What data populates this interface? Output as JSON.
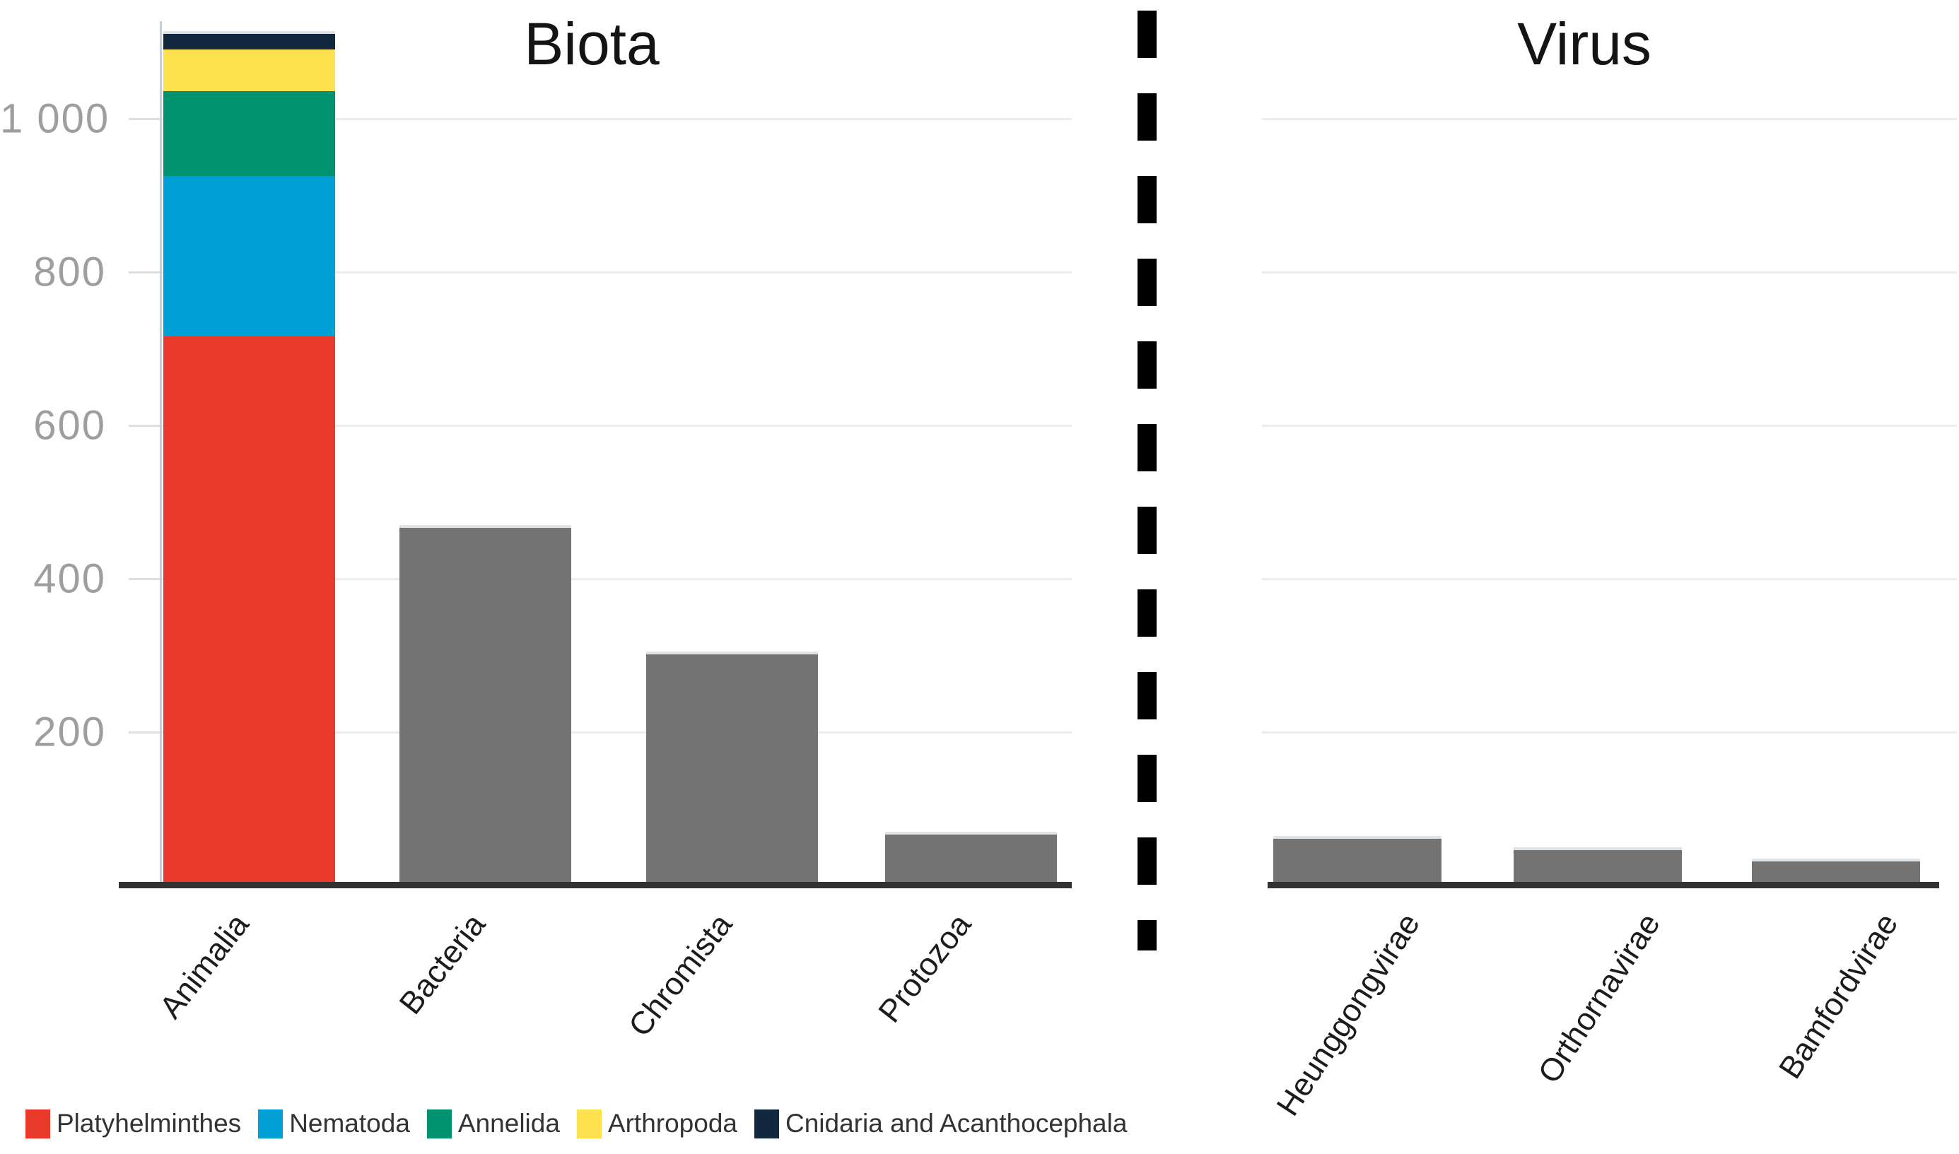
{
  "page": {
    "background": "#ffffff"
  },
  "y_axis": {
    "ticks": [
      {
        "label": "200",
        "value": 200
      },
      {
        "label": "400",
        "value": 400
      },
      {
        "label": "600",
        "value": 600
      },
      {
        "label": "800",
        "value": 800
      },
      {
        "label": "1 000",
        "value": 1000
      }
    ]
  },
  "chart_data": [
    {
      "type": "bar",
      "stacked": true,
      "title": "Biota",
      "ylabel": "",
      "xlabel": "",
      "ylim": [
        0,
        1150
      ],
      "grid": true,
      "categories": [
        "Animalia",
        "Bacteria",
        "Chromista",
        "Protozoa"
      ],
      "bars": [
        {
          "category": "Animalia",
          "segments": [
            {
              "name": "Platyhelminthes",
              "value": 715,
              "color": "#e8392b"
            },
            {
              "name": "Nematoda",
              "value": 210,
              "color": "#00a0d6"
            },
            {
              "name": "Annelida",
              "value": 110,
              "color": "#00916f"
            },
            {
              "name": "Arthropoda",
              "value": 55,
              "color": "#fee14e"
            },
            {
              "name": "Cnidaria and Acanthocephala",
              "value": 20,
              "color": "#12283f"
            }
          ]
        },
        {
          "category": "Bacteria",
          "segments": [
            {
              "name": "Bacteria",
              "value": 465,
              "color": "#737373"
            }
          ]
        },
        {
          "category": "Chromista",
          "segments": [
            {
              "name": "Chromista",
              "value": 300,
              "color": "#737373"
            }
          ]
        },
        {
          "category": "Protozoa",
          "segments": [
            {
              "name": "Protozoa",
              "value": 65,
              "color": "#737373"
            }
          ]
        }
      ]
    },
    {
      "type": "bar",
      "stacked": false,
      "title": "Virus",
      "ylabel": "",
      "xlabel": "",
      "ylim": [
        0,
        1150
      ],
      "grid": true,
      "categories": [
        "Heunggongvirae",
        "Orthornavirae",
        "Bamfordvirae"
      ],
      "bars": [
        {
          "category": "Heunggongvirae",
          "segments": [
            {
              "name": "Heunggongvirae",
              "value": 60,
              "color": "#737373"
            }
          ]
        },
        {
          "category": "Orthornavirae",
          "segments": [
            {
              "name": "Orthornavirae",
              "value": 45,
              "color": "#737373"
            }
          ]
        },
        {
          "category": "Bamfordvirae",
          "segments": [
            {
              "name": "Bamfordvirae",
              "value": 30,
              "color": "#737373"
            }
          ]
        }
      ]
    }
  ],
  "legend": {
    "items": [
      {
        "label": "Platyhelminthes",
        "color": "#e8392b"
      },
      {
        "label": "Nematoda",
        "color": "#00a0d6"
      },
      {
        "label": "Annelida",
        "color": "#00916f"
      },
      {
        "label": "Arthropoda",
        "color": "#fee14e"
      },
      {
        "label": "Cnidaria and Acanthocephala",
        "color": "#12283f"
      }
    ]
  },
  "divider": {
    "style": "vertical-dashed"
  }
}
